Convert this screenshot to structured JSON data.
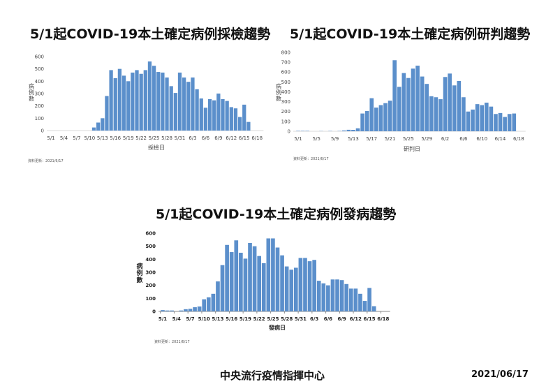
{
  "charts": [
    {
      "title": "5/1起COVID-19本土確定病例採檢趨勢",
      "y_label": "病例數",
      "x_label": "採檢日",
      "note": "資料更新：2021/6/17",
      "y_ticks": [
        "0",
        "100",
        "200",
        "300",
        "400",
        "500",
        "600"
      ],
      "x_ticks": [
        "5/1",
        "5/4",
        "5/7",
        "5/10",
        "5/13",
        "5/16",
        "5/19",
        "5/22",
        "5/25",
        "5/28",
        "5/31",
        "6/3",
        "6/6",
        "6/9",
        "6/12",
        "6/15",
        "6/18"
      ]
    },
    {
      "title": "5/1起COVID-19本土確定病例研判趨勢",
      "y_label": "病例數",
      "x_label": "研判日",
      "note": "資料更新：2021/6/17",
      "y_ticks": [
        "0",
        "100",
        "200",
        "300",
        "400",
        "500",
        "600",
        "700",
        "800"
      ],
      "x_ticks": [
        "5/1",
        "5/5",
        "5/9",
        "5/13",
        "5/17",
        "5/21",
        "5/25",
        "5/29",
        "6/2",
        "6/6",
        "6/10",
        "6/14",
        "6/18"
      ]
    },
    {
      "title": "5/1起COVID-19本土確定病例發病趨勢",
      "y_label": "病例數",
      "x_label": "發病日",
      "note": "資料更新：2021/6/17",
      "y_ticks": [
        "0",
        "100",
        "200",
        "300",
        "400",
        "500",
        "600"
      ],
      "x_ticks": [
        "5/1",
        "5/4",
        "5/7",
        "5/10",
        "5/13",
        "5/16",
        "5/19",
        "5/22",
        "5/25",
        "5/28",
        "5/31",
        "6/3",
        "6/6",
        "6/9",
        "6/12",
        "6/15",
        "6/18"
      ]
    }
  ],
  "footer": {
    "org": "中央流行疫情指揮中心",
    "date": "2021/06/17"
  },
  "colors": {
    "bar": "#5B8FCB",
    "axis": "#D9D9D9",
    "text": "#111111"
  },
  "chart_data": [
    {
      "type": "bar",
      "title": "5/1起COVID-19本土確定病例採檢趨勢",
      "xlabel": "採檢日",
      "ylabel": "病例數",
      "ylim": [
        0,
        600
      ],
      "grid": false,
      "legend": "none",
      "categories": [
        "5/1",
        "5/2",
        "5/3",
        "5/4",
        "5/5",
        "5/6",
        "5/7",
        "5/8",
        "5/9",
        "5/10",
        "5/11",
        "5/12",
        "5/13",
        "5/14",
        "5/15",
        "5/16",
        "5/17",
        "5/18",
        "5/19",
        "5/20",
        "5/21",
        "5/22",
        "5/23",
        "5/24",
        "5/25",
        "5/26",
        "5/27",
        "5/28",
        "5/29",
        "5/30",
        "5/31",
        "6/1",
        "6/2",
        "6/3",
        "6/4",
        "6/5",
        "6/6",
        "6/7",
        "6/8",
        "6/9",
        "6/10",
        "6/11",
        "6/12",
        "6/13",
        "6/14",
        "6/15",
        "6/16",
        "6/17",
        "6/18"
      ],
      "values": [
        0,
        0,
        0,
        0,
        0,
        0,
        0,
        0,
        0,
        0,
        25,
        65,
        100,
        280,
        490,
        425,
        500,
        445,
        400,
        470,
        490,
        460,
        490,
        560,
        525,
        475,
        470,
        430,
        360,
        305,
        470,
        430,
        395,
        430,
        335,
        260,
        185,
        255,
        245,
        300,
        255,
        240,
        190,
        180,
        110,
        210,
        70,
        0,
        0
      ],
      "annotations": [
        "資料更新：2021/6/17"
      ]
    },
    {
      "type": "bar",
      "title": "5/1起COVID-19本土確定病例研判趨勢",
      "xlabel": "研判日",
      "ylabel": "病例數",
      "ylim": [
        0,
        800
      ],
      "grid": false,
      "legend": "none",
      "categories": [
        "5/1",
        "5/2",
        "5/3",
        "5/4",
        "5/5",
        "5/6",
        "5/7",
        "5/8",
        "5/9",
        "5/10",
        "5/11",
        "5/12",
        "5/13",
        "5/14",
        "5/15",
        "5/16",
        "5/17",
        "5/18",
        "5/19",
        "5/20",
        "5/21",
        "5/22",
        "5/23",
        "5/24",
        "5/25",
        "5/26",
        "5/27",
        "5/28",
        "5/29",
        "5/30",
        "5/31",
        "6/1",
        "6/2",
        "6/3",
        "6/4",
        "6/5",
        "6/6",
        "6/7",
        "6/8",
        "6/9",
        "6/10",
        "6/11",
        "6/12",
        "6/13",
        "6/14",
        "6/15",
        "6/16",
        "6/17",
        "6/18"
      ],
      "values": [
        4,
        4,
        4,
        0,
        0,
        2,
        0,
        3,
        0,
        3,
        8,
        15,
        14,
        30,
        180,
        205,
        335,
        240,
        265,
        285,
        310,
        720,
        450,
        590,
        540,
        635,
        665,
        555,
        480,
        355,
        345,
        325,
        550,
        585,
        465,
        510,
        345,
        200,
        220,
        275,
        265,
        290,
        250,
        175,
        185,
        145,
        175,
        180,
        0
      ],
      "annotations": [
        "資料更新：2021/6/17"
      ]
    },
    {
      "type": "bar",
      "title": "5/1起COVID-19本土確定病例發病趨勢",
      "xlabel": "發病日",
      "ylabel": "病例數",
      "ylim": [
        0,
        600
      ],
      "grid": false,
      "legend": "none",
      "categories": [
        "5/1",
        "5/2",
        "5/3",
        "5/4",
        "5/5",
        "5/6",
        "5/7",
        "5/8",
        "5/9",
        "5/10",
        "5/11",
        "5/12",
        "5/13",
        "5/14",
        "5/15",
        "5/16",
        "5/17",
        "5/18",
        "5/19",
        "5/20",
        "5/21",
        "5/22",
        "5/23",
        "5/24",
        "5/25",
        "5/26",
        "5/27",
        "5/28",
        "5/29",
        "5/30",
        "5/31",
        "6/1",
        "6/2",
        "6/3",
        "6/4",
        "6/5",
        "6/6",
        "6/7",
        "6/8",
        "6/9",
        "6/10",
        "6/11",
        "6/12",
        "6/13",
        "6/14",
        "6/15",
        "6/16",
        "6/17",
        "6/18"
      ],
      "values": [
        10,
        7,
        7,
        0,
        7,
        17,
        20,
        32,
        38,
        93,
        108,
        135,
        230,
        355,
        510,
        455,
        545,
        450,
        405,
        525,
        500,
        425,
        370,
        560,
        560,
        490,
        430,
        345,
        320,
        335,
        410,
        410,
        385,
        395,
        235,
        215,
        200,
        245,
        245,
        240,
        210,
        175,
        175,
        135,
        80,
        180,
        40,
        0,
        0
      ],
      "annotations": [
        "資料更新：2021/6/17"
      ]
    }
  ]
}
